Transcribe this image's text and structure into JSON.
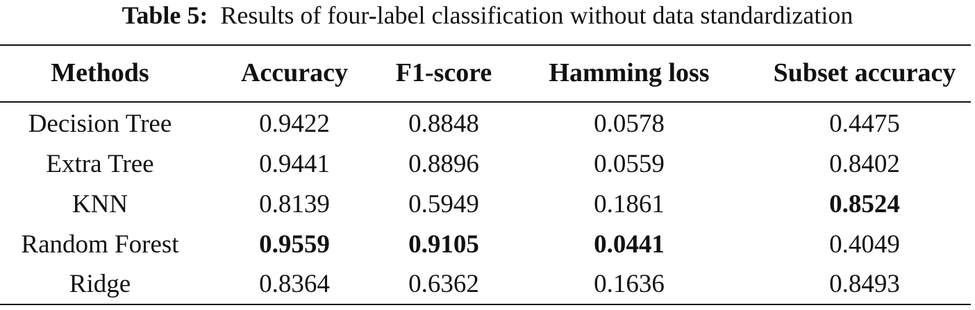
{
  "caption": {
    "label": "Table 5:",
    "text": "Results of four-label classification without data standardization"
  },
  "table": {
    "headers": [
      "Methods",
      "Accuracy",
      "F1-score",
      "Hamming loss",
      "Subset accuracy"
    ],
    "rows": [
      {
        "cells": [
          "Decision Tree",
          "0.9422",
          "0.8848",
          "0.0578",
          "0.4475"
        ],
        "bold": [
          false,
          false,
          false,
          false,
          false
        ]
      },
      {
        "cells": [
          "Extra Tree",
          "0.9441",
          "0.8896",
          "0.0559",
          "0.8402"
        ],
        "bold": [
          false,
          false,
          false,
          false,
          false
        ]
      },
      {
        "cells": [
          "KNN",
          "0.8139",
          "0.5949",
          "0.1861",
          "0.8524"
        ],
        "bold": [
          false,
          false,
          false,
          false,
          true
        ]
      },
      {
        "cells": [
          "Random Forest",
          "0.9559",
          "0.9105",
          "0.0441",
          "0.4049"
        ],
        "bold": [
          false,
          true,
          true,
          true,
          false
        ]
      },
      {
        "cells": [
          "Ridge",
          "0.8364",
          "0.6362",
          "0.1636",
          "0.8493"
        ],
        "bold": [
          false,
          false,
          false,
          false,
          false
        ]
      }
    ]
  }
}
